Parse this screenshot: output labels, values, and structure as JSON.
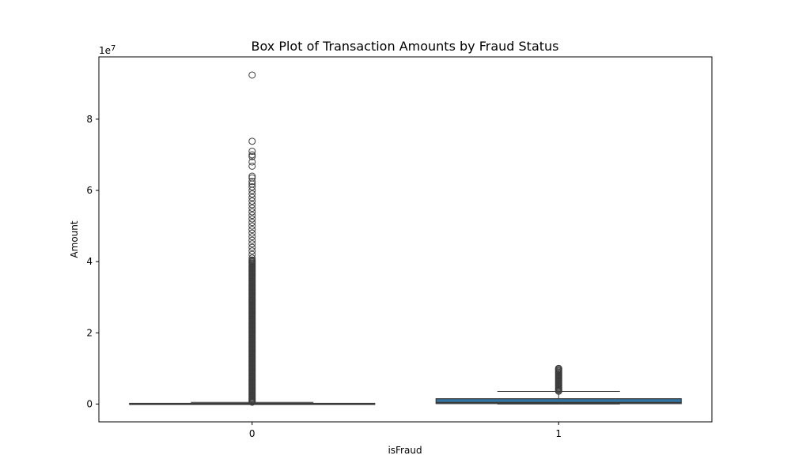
{
  "chart_data": {
    "type": "box",
    "title": "Box Plot of Transaction Amounts by Fraud Status",
    "xlabel": "isFraud",
    "ylabel": "Amount",
    "y_offset_label": "1e7",
    "ylim": [
      -5000000,
      97500000
    ],
    "y_ticks": [
      0,
      20000000,
      40000000,
      60000000,
      80000000
    ],
    "y_tick_labels": [
      "0",
      "2",
      "4",
      "6",
      "8"
    ],
    "categories": [
      "0",
      "1"
    ],
    "box_color": "#3274a1",
    "line_color": "#3b3b3b",
    "boxes": [
      {
        "category": "0",
        "q1": 13000,
        "median": 74000,
        "q3": 210000,
        "whisker_low": 0,
        "whisker_high": 500000,
        "outliers": [
          92400000,
          73800000,
          71000000,
          70000000,
          69500000,
          68000000,
          66800000,
          64000000,
          63500000,
          62500000,
          61800000,
          61000000,
          60000000,
          59000000,
          58000000,
          57000000,
          56000000,
          55000000,
          54000000,
          53000000,
          52000000,
          51000000,
          50000000,
          49000000,
          48000000,
          47000000,
          46000000,
          45000000,
          44000000,
          43000000,
          42000000,
          41000000
        ],
        "outlier_band": [
          520000,
          40500000
        ]
      },
      {
        "category": "1",
        "q1": 130000,
        "median": 440000,
        "q3": 1500000,
        "whisker_low": 0,
        "whisker_high": 3550000,
        "outliers": [
          10000000
        ],
        "outlier_band": [
          3600000,
          10000000
        ]
      }
    ]
  }
}
